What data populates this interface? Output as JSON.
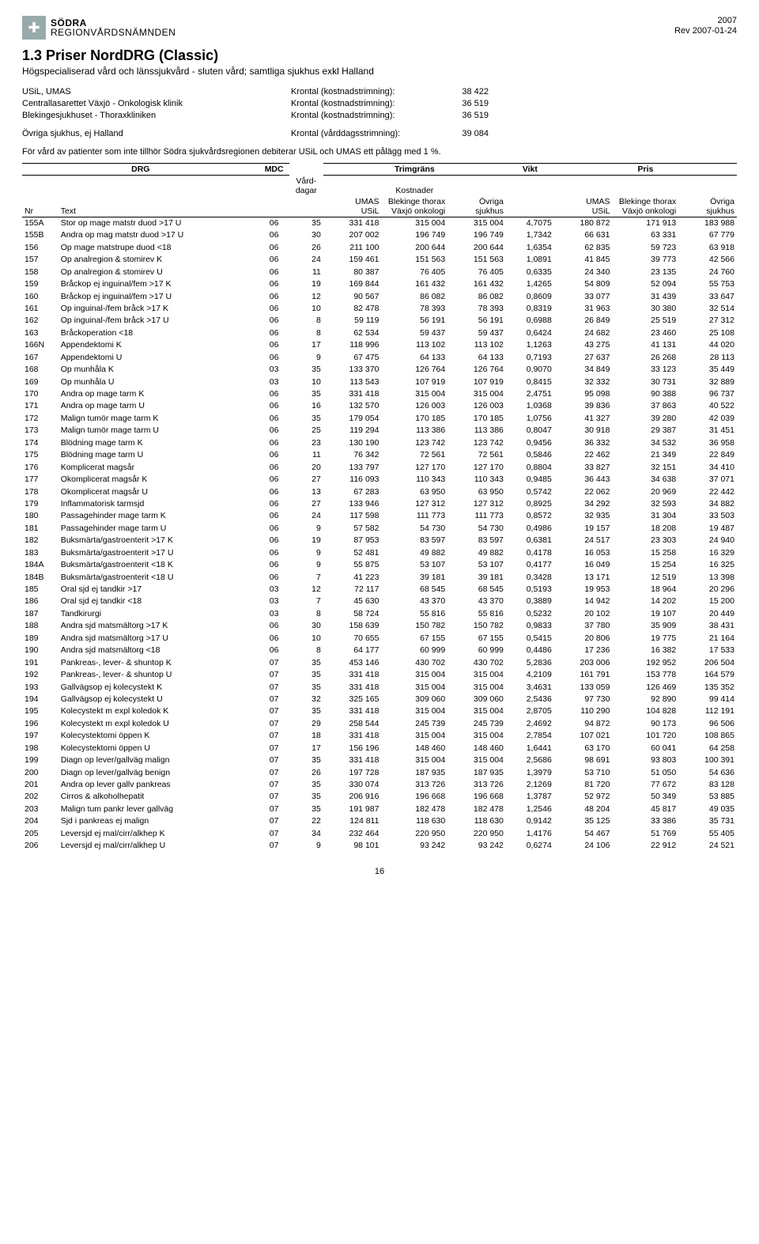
{
  "logo": {
    "line1": "SÖDRA",
    "line2": "REGIONVÅRDSNÄMNDEN"
  },
  "year": "2007",
  "rev": "Rev 2007-01-24",
  "section_title": "1.3  Priser NordDRG (Classic)",
  "subtitle": "Högspecialiserad vård och länssjukvård - sluten vård; samtliga sjukhus exkl Halland",
  "meta": [
    {
      "org": "USiL, UMAS",
      "label": "Krontal (kostnadstrimning):",
      "val": "38 422"
    },
    {
      "org": "Centrallasarettet Växjö  - Onkologisk klinik",
      "label": "Krontal (kostnadstrimning):",
      "val": "36 519"
    },
    {
      "org": "Blekingesjukhuset - Thoraxkliniken",
      "label": "Krontal (kostnadstrimning):",
      "val": "36 519"
    }
  ],
  "meta2": {
    "org": "Övriga sjukhus, ej Halland",
    "label": "Krontal (vårddagsstrimning):",
    "val": "39 084"
  },
  "note": "För vård av patienter som inte tillhör Södra sjukvårdsregionen debiterar USiL och UMAS ett pålägg med 1 %.",
  "headers": {
    "drg": "DRG",
    "mdc": "MDC",
    "trim": "Trimgräns",
    "vikt": "Vikt",
    "pris": "Pris",
    "vd": "Vård-\ndagar",
    "kost": "Kostnader",
    "nr": "Nr",
    "text": "Text",
    "umas": "UMAS\nUSiL",
    "blek": "Blekinge thorax\nVäxjö onkologi",
    "ovr": "Övriga\nsjukhus"
  },
  "page_number": "16",
  "rows": [
    {
      "nr": "155A",
      "text": "Stor op mage matstr duod >17 U",
      "mdc": "06",
      "vd": "35",
      "k1": "331 418",
      "k2": "315 004",
      "k3": "315 004",
      "vikt": "4,7075",
      "p1": "180 872",
      "p2": "171 913",
      "p3": "183 988"
    },
    {
      "nr": "155B",
      "text": "Andra op mag matstr duod >17 U",
      "mdc": "06",
      "vd": "30",
      "k1": "207 002",
      "k2": "196 749",
      "k3": "196 749",
      "vikt": "1,7342",
      "p1": "66 631",
      "p2": "63 331",
      "p3": "67 779"
    },
    {
      "nr": "156",
      "text": "Op mage matstrupe duod <18",
      "mdc": "06",
      "vd": "26",
      "k1": "211 100",
      "k2": "200 644",
      "k3": "200 644",
      "vikt": "1,6354",
      "p1": "62 835",
      "p2": "59 723",
      "p3": "63 918"
    },
    {
      "nr": "157",
      "text": "Op analregion & stomirev K",
      "mdc": "06",
      "vd": "24",
      "k1": "159 461",
      "k2": "151 563",
      "k3": "151 563",
      "vikt": "1,0891",
      "p1": "41 845",
      "p2": "39 773",
      "p3": "42 566"
    },
    {
      "nr": "158",
      "text": "Op analregion & stomirev U",
      "mdc": "06",
      "vd": "11",
      "k1": "80 387",
      "k2": "76 405",
      "k3": "76 405",
      "vikt": "0,6335",
      "p1": "24 340",
      "p2": "23 135",
      "p3": "24 760"
    },
    {
      "nr": "159",
      "text": "Bråckop ej inguinal/fem >17 K",
      "mdc": "06",
      "vd": "19",
      "k1": "169 844",
      "k2": "161 432",
      "k3": "161 432",
      "vikt": "1,4265",
      "p1": "54 809",
      "p2": "52 094",
      "p3": "55 753"
    },
    {
      "nr": "160",
      "text": "Bråckop ej inguinal/fem >17 U",
      "mdc": "06",
      "vd": "12",
      "k1": "90 567",
      "k2": "86 082",
      "k3": "86 082",
      "vikt": "0,8609",
      "p1": "33 077",
      "p2": "31 439",
      "p3": "33 647"
    },
    {
      "nr": "161",
      "text": "Op inguinal-/fem bråck >17 K",
      "mdc": "06",
      "vd": "10",
      "k1": "82 478",
      "k2": "78 393",
      "k3": "78 393",
      "vikt": "0,8319",
      "p1": "31 963",
      "p2": "30 380",
      "p3": "32 514"
    },
    {
      "nr": "162",
      "text": "Op inguinal-/fem bråck >17 U",
      "mdc": "06",
      "vd": "8",
      "k1": "59 119",
      "k2": "56 191",
      "k3": "56 191",
      "vikt": "0,6988",
      "p1": "26 849",
      "p2": "25 519",
      "p3": "27 312"
    },
    {
      "nr": "163",
      "text": "Bråckoperation <18",
      "mdc": "06",
      "vd": "8",
      "k1": "62 534",
      "k2": "59 437",
      "k3": "59 437",
      "vikt": "0,6424",
      "p1": "24 682",
      "p2": "23 460",
      "p3": "25 108"
    },
    {
      "nr": "166N",
      "text": "Appendektomi K",
      "mdc": "06",
      "vd": "17",
      "k1": "118 996",
      "k2": "113 102",
      "k3": "113 102",
      "vikt": "1,1263",
      "p1": "43 275",
      "p2": "41 131",
      "p3": "44 020"
    },
    {
      "nr": "167",
      "text": "Appendektomi U",
      "mdc": "06",
      "vd": "9",
      "k1": "67 475",
      "k2": "64 133",
      "k3": "64 133",
      "vikt": "0,7193",
      "p1": "27 637",
      "p2": "26 268",
      "p3": "28 113"
    },
    {
      "nr": "168",
      "text": "Op munhåla K",
      "mdc": "03",
      "vd": "35",
      "k1": "133 370",
      "k2": "126 764",
      "k3": "126 764",
      "vikt": "0,9070",
      "p1": "34 849",
      "p2": "33 123",
      "p3": "35 449"
    },
    {
      "nr": "169",
      "text": "Op munhåla U",
      "mdc": "03",
      "vd": "10",
      "k1": "113 543",
      "k2": "107 919",
      "k3": "107 919",
      "vikt": "0,8415",
      "p1": "32 332",
      "p2": "30 731",
      "p3": "32 889"
    },
    {
      "nr": "170",
      "text": "Andra op mage tarm K",
      "mdc": "06",
      "vd": "35",
      "k1": "331 418",
      "k2": "315 004",
      "k3": "315 004",
      "vikt": "2,4751",
      "p1": "95 098",
      "p2": "90 388",
      "p3": "96 737"
    },
    {
      "nr": "171",
      "text": "Andra op mage tarm U",
      "mdc": "06",
      "vd": "16",
      "k1": "132 570",
      "k2": "126 003",
      "k3": "126 003",
      "vikt": "1,0368",
      "p1": "39 836",
      "p2": "37 863",
      "p3": "40 522"
    },
    {
      "nr": "172",
      "text": "Malign tumör mage tarm K",
      "mdc": "06",
      "vd": "35",
      "k1": "179 054",
      "k2": "170 185",
      "k3": "170 185",
      "vikt": "1,0756",
      "p1": "41 327",
      "p2": "39 280",
      "p3": "42 039"
    },
    {
      "nr": "173",
      "text": "Malign tumör mage tarm U",
      "mdc": "06",
      "vd": "25",
      "k1": "119 294",
      "k2": "113 386",
      "k3": "113 386",
      "vikt": "0,8047",
      "p1": "30 918",
      "p2": "29 387",
      "p3": "31 451"
    },
    {
      "nr": "174",
      "text": "Blödning mage tarm K",
      "mdc": "06",
      "vd": "23",
      "k1": "130 190",
      "k2": "123 742",
      "k3": "123 742",
      "vikt": "0,9456",
      "p1": "36 332",
      "p2": "34 532",
      "p3": "36 958"
    },
    {
      "nr": "175",
      "text": "Blödning mage tarm U",
      "mdc": "06",
      "vd": "11",
      "k1": "76 342",
      "k2": "72 561",
      "k3": "72 561",
      "vikt": "0,5846",
      "p1": "22 462",
      "p2": "21 349",
      "p3": "22 849"
    },
    {
      "nr": "176",
      "text": "Komplicerat magsår",
      "mdc": "06",
      "vd": "20",
      "k1": "133 797",
      "k2": "127 170",
      "k3": "127 170",
      "vikt": "0,8804",
      "p1": "33 827",
      "p2": "32 151",
      "p3": "34 410"
    },
    {
      "nr": "177",
      "text": "Okomplicerat magsår K",
      "mdc": "06",
      "vd": "27",
      "k1": "116 093",
      "k2": "110 343",
      "k3": "110 343",
      "vikt": "0,9485",
      "p1": "36 443",
      "p2": "34 638",
      "p3": "37 071"
    },
    {
      "nr": "178",
      "text": "Okomplicerat magsår U",
      "mdc": "06",
      "vd": "13",
      "k1": "67 283",
      "k2": "63 950",
      "k3": "63 950",
      "vikt": "0,5742",
      "p1": "22 062",
      "p2": "20 969",
      "p3": "22 442"
    },
    {
      "nr": "179",
      "text": "Inflammatorisk tarmsjd",
      "mdc": "06",
      "vd": "27",
      "k1": "133 946",
      "k2": "127 312",
      "k3": "127 312",
      "vikt": "0,8925",
      "p1": "34 292",
      "p2": "32 593",
      "p3": "34 882"
    },
    {
      "nr": "180",
      "text": "Passagehinder mage tarm K",
      "mdc": "06",
      "vd": "24",
      "k1": "117 598",
      "k2": "111 773",
      "k3": "111 773",
      "vikt": "0,8572",
      "p1": "32 935",
      "p2": "31 304",
      "p3": "33 503"
    },
    {
      "nr": "181",
      "text": "Passagehinder mage tarm U",
      "mdc": "06",
      "vd": "9",
      "k1": "57 582",
      "k2": "54 730",
      "k3": "54 730",
      "vikt": "0,4986",
      "p1": "19 157",
      "p2": "18 208",
      "p3": "19 487"
    },
    {
      "nr": "182",
      "text": "Buksmärta/gastroenterit >17 K",
      "mdc": "06",
      "vd": "19",
      "k1": "87 953",
      "k2": "83 597",
      "k3": "83 597",
      "vikt": "0,6381",
      "p1": "24 517",
      "p2": "23 303",
      "p3": "24 940"
    },
    {
      "nr": "183",
      "text": "Buksmärta/gastroenterit >17 U",
      "mdc": "06",
      "vd": "9",
      "k1": "52 481",
      "k2": "49 882",
      "k3": "49 882",
      "vikt": "0,4178",
      "p1": "16 053",
      "p2": "15 258",
      "p3": "16 329"
    },
    {
      "nr": "184A",
      "text": "Buksmärta/gastroenterit <18 K",
      "mdc": "06",
      "vd": "9",
      "k1": "55 875",
      "k2": "53 107",
      "k3": "53 107",
      "vikt": "0,4177",
      "p1": "16 049",
      "p2": "15 254",
      "p3": "16 325"
    },
    {
      "nr": "184B",
      "text": "Buksmärta/gastroenterit <18 U",
      "mdc": "06",
      "vd": "7",
      "k1": "41 223",
      "k2": "39 181",
      "k3": "39 181",
      "vikt": "0,3428",
      "p1": "13 171",
      "p2": "12 519",
      "p3": "13 398"
    },
    {
      "nr": "185",
      "text": "Oral sjd ej tandkir >17",
      "mdc": "03",
      "vd": "12",
      "k1": "72 117",
      "k2": "68 545",
      "k3": "68 545",
      "vikt": "0,5193",
      "p1": "19 953",
      "p2": "18 964",
      "p3": "20 296"
    },
    {
      "nr": "186",
      "text": "Oral sjd ej tandkir <18",
      "mdc": "03",
      "vd": "7",
      "k1": "45 630",
      "k2": "43 370",
      "k3": "43 370",
      "vikt": "0,3889",
      "p1": "14 942",
      "p2": "14 202",
      "p3": "15 200"
    },
    {
      "nr": "187",
      "text": "Tandkirurgi",
      "mdc": "03",
      "vd": "8",
      "k1": "58 724",
      "k2": "55 816",
      "k3": "55 816",
      "vikt": "0,5232",
      "p1": "20 102",
      "p2": "19 107",
      "p3": "20 449"
    },
    {
      "nr": "188",
      "text": "Andra sjd matsmältorg >17 K",
      "mdc": "06",
      "vd": "30",
      "k1": "158 639",
      "k2": "150 782",
      "k3": "150 782",
      "vikt": "0,9833",
      "p1": "37 780",
      "p2": "35 909",
      "p3": "38 431"
    },
    {
      "nr": "189",
      "text": "Andra sjd matsmältorg >17 U",
      "mdc": "06",
      "vd": "10",
      "k1": "70 655",
      "k2": "67 155",
      "k3": "67 155",
      "vikt": "0,5415",
      "p1": "20 806",
      "p2": "19 775",
      "p3": "21 164"
    },
    {
      "nr": "190",
      "text": "Andra sjd matsmältorg <18",
      "mdc": "06",
      "vd": "8",
      "k1": "64 177",
      "k2": "60 999",
      "k3": "60 999",
      "vikt": "0,4486",
      "p1": "17 236",
      "p2": "16 382",
      "p3": "17 533"
    },
    {
      "nr": "191",
      "text": "Pankreas-, lever- & shuntop K",
      "mdc": "07",
      "vd": "35",
      "k1": "453 146",
      "k2": "430 702",
      "k3": "430 702",
      "vikt": "5,2836",
      "p1": "203 006",
      "p2": "192 952",
      "p3": "206 504"
    },
    {
      "nr": "192",
      "text": "Pankreas-, lever- & shuntop U",
      "mdc": "07",
      "vd": "35",
      "k1": "331 418",
      "k2": "315 004",
      "k3": "315 004",
      "vikt": "4,2109",
      "p1": "161 791",
      "p2": "153 778",
      "p3": "164 579"
    },
    {
      "nr": "193",
      "text": "Gallvägsop ej kolecystekt K",
      "mdc": "07",
      "vd": "35",
      "k1": "331 418",
      "k2": "315 004",
      "k3": "315 004",
      "vikt": "3,4631",
      "p1": "133 059",
      "p2": "126 469",
      "p3": "135 352"
    },
    {
      "nr": "194",
      "text": "Gallvägsop ej kolecystekt U",
      "mdc": "07",
      "vd": "32",
      "k1": "325 165",
      "k2": "309 060",
      "k3": "309 060",
      "vikt": "2,5436",
      "p1": "97 730",
      "p2": "92 890",
      "p3": "99 414"
    },
    {
      "nr": "195",
      "text": "Kolecystekt m expl koledok K",
      "mdc": "07",
      "vd": "35",
      "k1": "331 418",
      "k2": "315 004",
      "k3": "315 004",
      "vikt": "2,8705",
      "p1": "110 290",
      "p2": "104 828",
      "p3": "112 191"
    },
    {
      "nr": "196",
      "text": "Kolecystekt m expl koledok U",
      "mdc": "07",
      "vd": "29",
      "k1": "258 544",
      "k2": "245 739",
      "k3": "245 739",
      "vikt": "2,4692",
      "p1": "94 872",
      "p2": "90 173",
      "p3": "96 506"
    },
    {
      "nr": "197",
      "text": "Kolecystektomi öppen K",
      "mdc": "07",
      "vd": "18",
      "k1": "331 418",
      "k2": "315 004",
      "k3": "315 004",
      "vikt": "2,7854",
      "p1": "107 021",
      "p2": "101 720",
      "p3": "108 865"
    },
    {
      "nr": "198",
      "text": "Kolecystektomi öppen U",
      "mdc": "07",
      "vd": "17",
      "k1": "156 196",
      "k2": "148 460",
      "k3": "148 460",
      "vikt": "1,6441",
      "p1": "63 170",
      "p2": "60 041",
      "p3": "64 258"
    },
    {
      "nr": "199",
      "text": "Diagn op lever/gallväg malign",
      "mdc": "07",
      "vd": "35",
      "k1": "331 418",
      "k2": "315 004",
      "k3": "315 004",
      "vikt": "2,5686",
      "p1": "98 691",
      "p2": "93 803",
      "p3": "100 391"
    },
    {
      "nr": "200",
      "text": "Diagn op lever/gallväg benign",
      "mdc": "07",
      "vd": "26",
      "k1": "197 728",
      "k2": "187 935",
      "k3": "187 935",
      "vikt": "1,3979",
      "p1": "53 710",
      "p2": "51 050",
      "p3": "54 636"
    },
    {
      "nr": "201",
      "text": "Andra op lever gallv pankreas",
      "mdc": "07",
      "vd": "35",
      "k1": "330 074",
      "k2": "313 726",
      "k3": "313 726",
      "vikt": "2,1269",
      "p1": "81 720",
      "p2": "77 672",
      "p3": "83 128"
    },
    {
      "nr": "202",
      "text": "Cirros & alkoholhepatit",
      "mdc": "07",
      "vd": "35",
      "k1": "206 916",
      "k2": "196 668",
      "k3": "196 668",
      "vikt": "1,3787",
      "p1": "52 972",
      "p2": "50 349",
      "p3": "53 885"
    },
    {
      "nr": "203",
      "text": "Malign tum pankr lever gallväg",
      "mdc": "07",
      "vd": "35",
      "k1": "191 987",
      "k2": "182 478",
      "k3": "182 478",
      "vikt": "1,2546",
      "p1": "48 204",
      "p2": "45 817",
      "p3": "49 035"
    },
    {
      "nr": "204",
      "text": "Sjd i pankreas ej malign",
      "mdc": "07",
      "vd": "22",
      "k1": "124 811",
      "k2": "118 630",
      "k3": "118 630",
      "vikt": "0,9142",
      "p1": "35 125",
      "p2": "33 386",
      "p3": "35 731"
    },
    {
      "nr": "205",
      "text": "Leversjd ej mal/cirr/alkhep K",
      "mdc": "07",
      "vd": "34",
      "k1": "232 464",
      "k2": "220 950",
      "k3": "220 950",
      "vikt": "1,4176",
      "p1": "54 467",
      "p2": "51 769",
      "p3": "55 405"
    },
    {
      "nr": "206",
      "text": "Leversjd ej mal/cirr/alkhep U",
      "mdc": "07",
      "vd": "9",
      "k1": "98 101",
      "k2": "93 242",
      "k3": "93 242",
      "vikt": "0,6274",
      "p1": "24 106",
      "p2": "22 912",
      "p3": "24 521"
    }
  ]
}
